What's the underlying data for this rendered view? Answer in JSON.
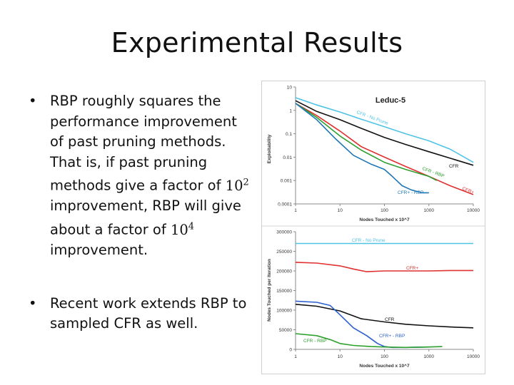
{
  "slide": {
    "title": "Experimental Results",
    "bullets": [
      {
        "marker": "•",
        "text_a": "RBP roughly squares the performance improvement of past pruning methods. That is, if past pruning methods give a factor of ",
        "math1_base": "10",
        "math1_exp": "2",
        "text_b": " improvement, RBP will give about a factor of ",
        "math2_base": "10",
        "math2_exp": "4",
        "text_c": " improvement."
      },
      {
        "marker": "•",
        "text": "Recent work extends RBP to sampled CFR as well."
      }
    ]
  },
  "chart_data": [
    {
      "type": "line",
      "title": "Leduc-5",
      "xlabel": "Nodes Touched x 10^7",
      "ylabel": "Exploitability",
      "xscale": "log",
      "yscale": "log",
      "xlim": [
        1,
        10000
      ],
      "ylim": [
        0.0001,
        10
      ],
      "xticks": [
        "1",
        "10",
        "100",
        "1000",
        "10000"
      ],
      "yticks": [
        "10",
        "1",
        "0.1",
        "0.01",
        "0.001",
        "0.0001"
      ],
      "grid": false,
      "legend": "inline labels",
      "series": [
        {
          "name": "CFR - No Prune",
          "color": "#4fc3e6",
          "x": [
            1,
            3,
            10,
            30,
            100,
            300,
            1000,
            3000,
            10000
          ],
          "y": [
            3.5,
            1.7,
            0.85,
            0.42,
            0.2,
            0.1,
            0.05,
            0.022,
            0.006
          ]
        },
        {
          "name": "CFR",
          "color": "#111111",
          "x": [
            1,
            3,
            10,
            30,
            100,
            300,
            1000,
            3000,
            10000
          ],
          "y": [
            2.6,
            0.9,
            0.4,
            0.17,
            0.07,
            0.035,
            0.017,
            0.009,
            0.0045
          ]
        },
        {
          "name": "CFR+",
          "color": "#e03030",
          "x": [
            1,
            3,
            10,
            30,
            100,
            300,
            1000,
            3000,
            10000
          ],
          "y": [
            2.0,
            0.6,
            0.13,
            0.028,
            0.01,
            0.004,
            0.0015,
            0.0006,
            0.00025
          ]
        },
        {
          "name": "CFR - RBP",
          "color": "#2ea02e",
          "x": [
            1,
            3,
            10,
            30,
            100,
            300,
            1000,
            1500
          ],
          "y": [
            2.0,
            0.5,
            0.08,
            0.02,
            0.006,
            0.003,
            0.0015,
            0.001
          ]
        },
        {
          "name": "CFR+ - RBP",
          "color": "#1f77b4",
          "x": [
            1,
            3,
            8,
            20,
            50,
            100,
            150,
            250,
            400,
            700,
            1000
          ],
          "y": [
            2.0,
            0.4,
            0.06,
            0.012,
            0.005,
            0.003,
            0.0015,
            0.0006,
            0.0004,
            0.0003,
            0.0003
          ]
        }
      ]
    },
    {
      "type": "line",
      "title": "",
      "xlabel": "Nodes Touched x 10^7",
      "ylabel": "Nodes Touched per Iteration",
      "xscale": "log",
      "yscale": "linear",
      "xlim": [
        1,
        10000
      ],
      "ylim": [
        0,
        300000
      ],
      "xticks": [
        "1",
        "10",
        "100",
        "1000",
        "10000"
      ],
      "yticks": [
        "300000",
        "250000",
        "200000",
        "150000",
        "100000",
        "50000",
        "0"
      ],
      "grid": false,
      "legend": "inline labels",
      "series": [
        {
          "name": "CFR - No Prune",
          "color": "#4fc3e6",
          "x": [
            1,
            10000
          ],
          "y": [
            270000,
            270000
          ]
        },
        {
          "name": "CFR+",
          "color": "#e03030",
          "x": [
            1,
            3,
            10,
            20,
            40,
            100,
            300,
            1000,
            3000,
            10000
          ],
          "y": [
            222000,
            220000,
            213000,
            205000,
            198000,
            200000,
            200000,
            200000,
            201000,
            201000
          ]
        },
        {
          "name": "CFR",
          "color": "#111111",
          "x": [
            1,
            3,
            10,
            30,
            100,
            300,
            1000,
            3000,
            10000
          ],
          "y": [
            115000,
            110000,
            98000,
            78000,
            70000,
            64000,
            60000,
            57000,
            55000
          ]
        },
        {
          "name": "CFR+ - RBP",
          "color": "#2d5fd0",
          "x": [
            1,
            3,
            6,
            10,
            20,
            40,
            70,
            100,
            150,
            300,
            1000
          ],
          "y": [
            123000,
            120000,
            112000,
            88000,
            55000,
            35000,
            15000,
            7000,
            5000,
            5000,
            6000
          ]
        },
        {
          "name": "CFR - RBP",
          "color": "#2ea02e",
          "x": [
            1,
            3,
            6,
            10,
            20,
            50,
            100,
            300,
            1000,
            2000
          ],
          "y": [
            40000,
            35000,
            25000,
            15000,
            10000,
            7000,
            6000,
            5000,
            6000,
            7000
          ]
        }
      ]
    }
  ]
}
